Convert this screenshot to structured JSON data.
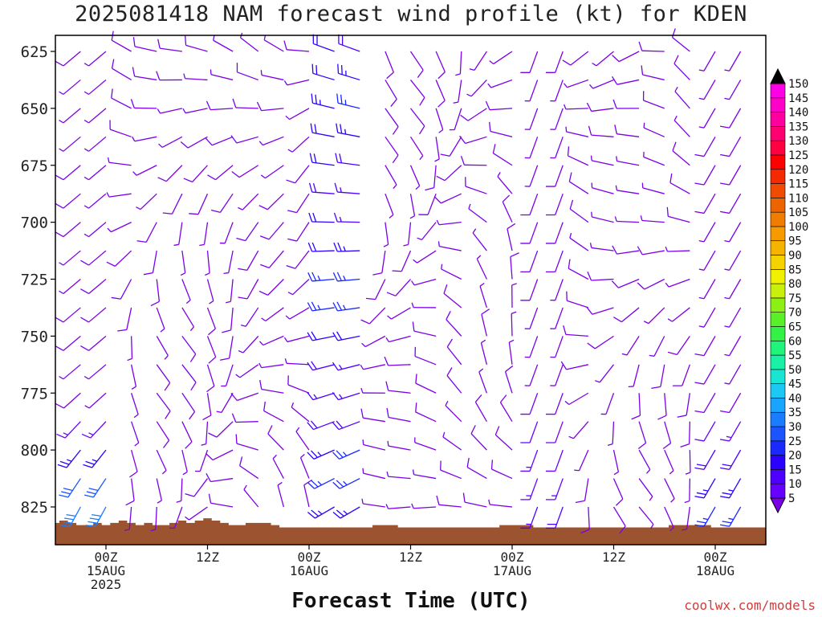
{
  "title": "2025081418 NAM forecast wind profile (kt) for KDEN",
  "xlabel": "Forecast Time (UTC)",
  "credit": "coolwx.com/models",
  "chart_data": {
    "type": "wind_barb_time_height",
    "title": "2025081418 NAM forecast wind profile (kt) for KDEN",
    "xlabel": "Forecast Time (UTC)",
    "ylabel": "",
    "y_axis_ticks": [
      625,
      650,
      675,
      700,
      725,
      750,
      775,
      800,
      825
    ],
    "ylim": [
      838,
      619
    ],
    "x_axis_ticks": [
      {
        "hour": 6,
        "lines": [
          "00Z",
          "15AUG",
          "2025"
        ]
      },
      {
        "hour": 18,
        "lines": [
          "12Z"
        ]
      },
      {
        "hour": 30,
        "lines": [
          "00Z",
          "16AUG"
        ]
      },
      {
        "hour": 42,
        "lines": [
          "12Z"
        ]
      },
      {
        "hour": 54,
        "lines": [
          "00Z",
          "17AUG"
        ]
      },
      {
        "hour": 66,
        "lines": [
          "12Z"
        ]
      },
      {
        "hour": 78,
        "lines": [
          "00Z",
          "18AUG"
        ]
      }
    ],
    "xlim_forecast_hours": [
      0,
      84
    ],
    "colorbar_units": "kt",
    "colorbar_levels": [
      5,
      10,
      15,
      20,
      25,
      30,
      35,
      40,
      45,
      50,
      55,
      60,
      65,
      70,
      75,
      80,
      85,
      90,
      95,
      100,
      105,
      110,
      115,
      120,
      125,
      130,
      135,
      140,
      145,
      150
    ],
    "colorbar_colors": [
      "#7c00e8",
      "#6600ff",
      "#4d00ff",
      "#2b00ff",
      "#1a2aff",
      "#1c55ff",
      "#1a7cff",
      "#18a4ff",
      "#1ec8f5",
      "#19e6d2",
      "#19f2a6",
      "#1ff578",
      "#33f246",
      "#5af028",
      "#8cf014",
      "#c8f00a",
      "#f0f000",
      "#f5d200",
      "#f5b400",
      "#f59b00",
      "#f07d00",
      "#eb6400",
      "#f04b00",
      "#f52a00",
      "#ff0000",
      "#ff0040",
      "#ff0070",
      "#ff00a0",
      "#ff00c8",
      "#ff00e6"
    ],
    "terrain_color": "#9c5430",
    "surface_pressure_hpa": [
      832,
      831,
      832,
      833,
      833,
      832,
      833,
      832,
      831,
      832,
      833,
      832,
      833,
      833,
      832,
      831,
      832,
      831,
      830,
      831,
      832,
      833,
      833,
      832,
      832,
      832,
      833,
      834,
      834,
      834,
      834,
      834,
      834,
      834,
      834,
      834,
      834,
      834,
      833,
      833,
      833,
      834,
      834,
      834,
      834,
      834,
      834,
      834,
      834,
      834,
      834,
      834,
      834,
      833,
      833,
      833,
      833,
      834,
      834,
      834,
      834,
      834,
      834,
      834,
      834,
      834,
      834,
      834,
      834,
      834,
      834,
      834,
      834,
      833,
      833,
      833,
      833,
      833,
      834,
      834,
      834,
      834,
      834,
      834,
      834
    ],
    "wind_field_summary": "Wind barbs plotted every 3 h and 12.5 hPa; mostly light winds under 10 kt (purple), stronger 20-45 kt winds (blue/cyan) near the surface early on 15 AUG and 18 AUG and along the 16 AUG 06Z column."
  }
}
